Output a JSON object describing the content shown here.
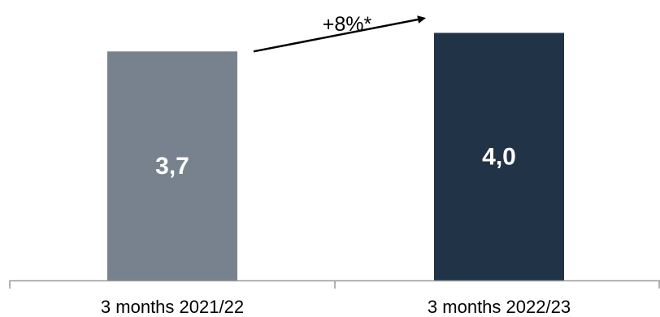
{
  "chart_data": {
    "type": "bar",
    "categories": [
      "3 months 2021/22",
      "3 months 2022/23"
    ],
    "values": [
      3.7,
      4.0
    ],
    "value_labels": [
      "3,7",
      "4,0"
    ],
    "colors": [
      "#78828f",
      "#213447"
    ],
    "ylim": [
      0,
      4.4
    ],
    "grid": false,
    "legend": "none",
    "title": "",
    "xlabel": "",
    "ylabel": "",
    "annotation": {
      "text": "+8%*",
      "type": "arrow",
      "from_category": 0,
      "to_category": 1
    },
    "axis_color": "#999999"
  }
}
